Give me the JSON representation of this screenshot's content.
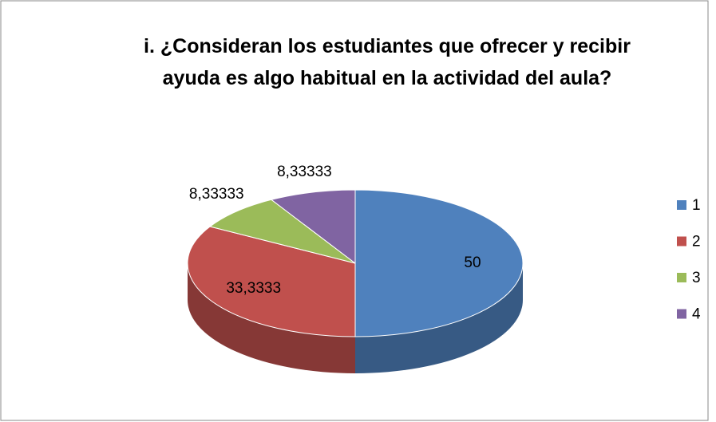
{
  "chart_data": {
    "type": "pie",
    "title": "i. ¿Consideran los estudiantes que ofrecer y recibir ayuda es algo habitual en la actividad del aula?",
    "categories": [
      "1",
      "2",
      "3",
      "4"
    ],
    "values": [
      50,
      33.3333,
      8.33333,
      8.33333
    ],
    "value_labels": [
      "50",
      "33,3333",
      "8,33333",
      "8,33333"
    ],
    "colors": [
      "#4f81bd",
      "#c0504d",
      "#9bbb59",
      "#8064a2"
    ],
    "legend": "right"
  }
}
